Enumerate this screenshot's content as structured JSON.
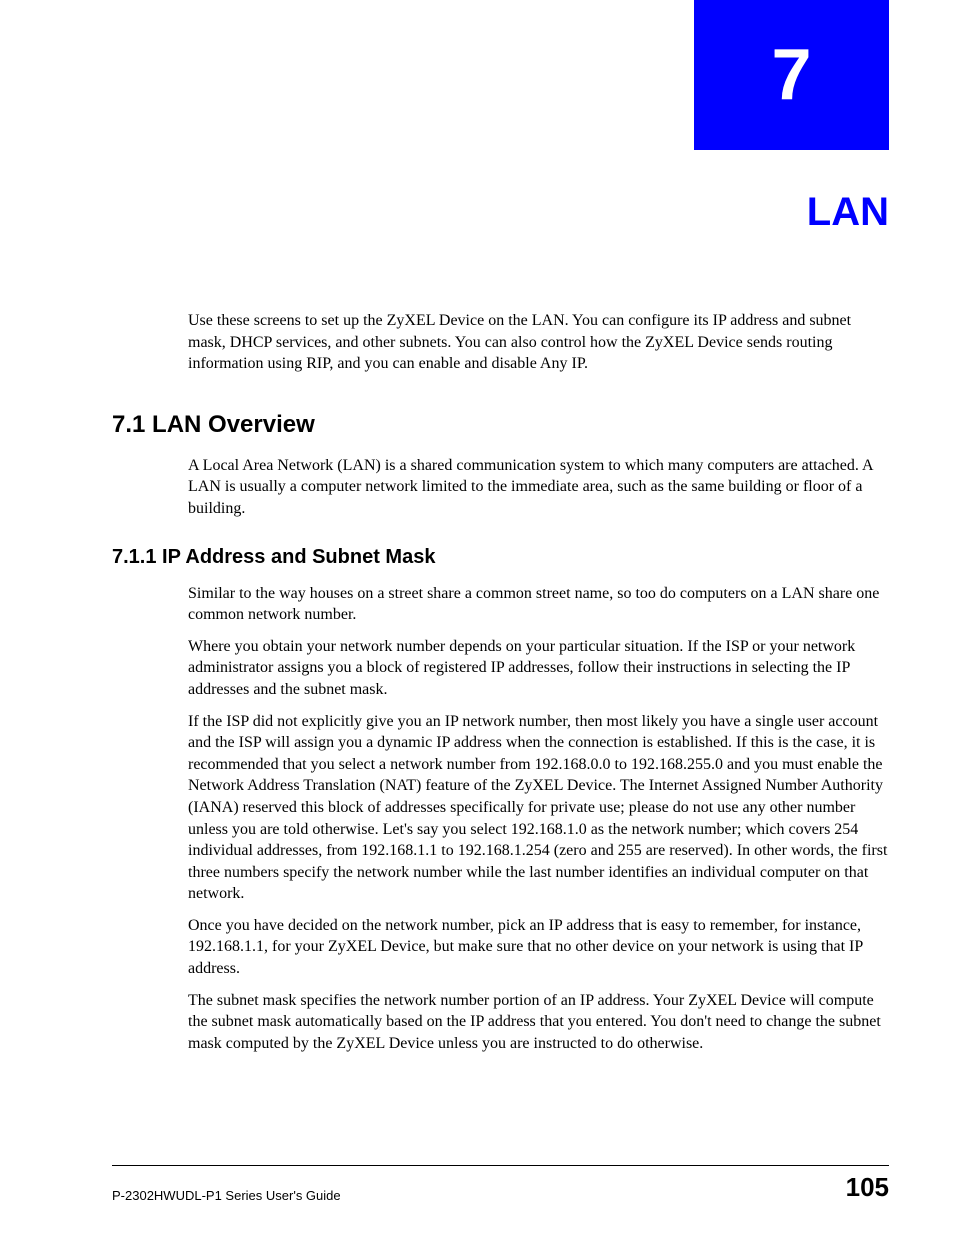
{
  "chapter": {
    "number": "7",
    "title": "LAN",
    "box_bg": "#0000ff",
    "title_color": "#0000ff"
  },
  "intro": "Use these screens to set up the ZyXEL Device on the LAN. You can configure its IP address and subnet mask, DHCP services, and other subnets. You can also control how the ZyXEL Device sends routing information using RIP, and you can enable and disable Any IP.",
  "sections": {
    "s1": {
      "heading": "7.1  LAN Overview",
      "p1": "A Local Area Network (LAN) is a shared communication system to which many computers are attached. A LAN is usually a computer network limited to the immediate area, such as the same building or floor of a building."
    },
    "s1_1": {
      "heading": "7.1.1  IP Address and Subnet Mask",
      "p1": "Similar to the way houses on a street share a common street name, so too do computers on a LAN share one common network number.",
      "p2": "Where you obtain your network number depends on your particular situation. If the ISP or your network administrator assigns you a block of registered IP addresses, follow their instructions in selecting the IP addresses and the subnet mask.",
      "p3": "If the ISP did not explicitly give you an IP network number, then most likely you have a single user account and the ISP will assign you a dynamic IP address when the connection is established. If this is the case, it is recommended that you select a network number from 192.168.0.0 to 192.168.255.0 and you must enable the Network Address Translation (NAT) feature of the ZyXEL Device. The Internet Assigned Number Authority (IANA) reserved this block of addresses specifically for private use; please do not use any other number unless you are told otherwise. Let's say you select 192.168.1.0 as the network number; which covers 254 individual addresses, from 192.168.1.1 to 192.168.1.254 (zero and 255 are reserved). In other words, the first three numbers specify the network number while the last number identifies an individual computer on that network.",
      "p4": "Once you have decided on the network number, pick an IP address that is easy to remember, for instance, 192.168.1.1, for your ZyXEL Device, but make sure that no other device on your network is using that IP address.",
      "p5": "The subnet mask specifies the network number portion of an IP address. Your ZyXEL Device will compute the subnet mask automatically based on the IP address that you entered. You don't need to change the subnet mask computed by the ZyXEL Device unless you are instructed to do otherwise."
    }
  },
  "footer": {
    "guide": "P-2302HWUDL-P1 Series User's Guide",
    "page": "105"
  }
}
